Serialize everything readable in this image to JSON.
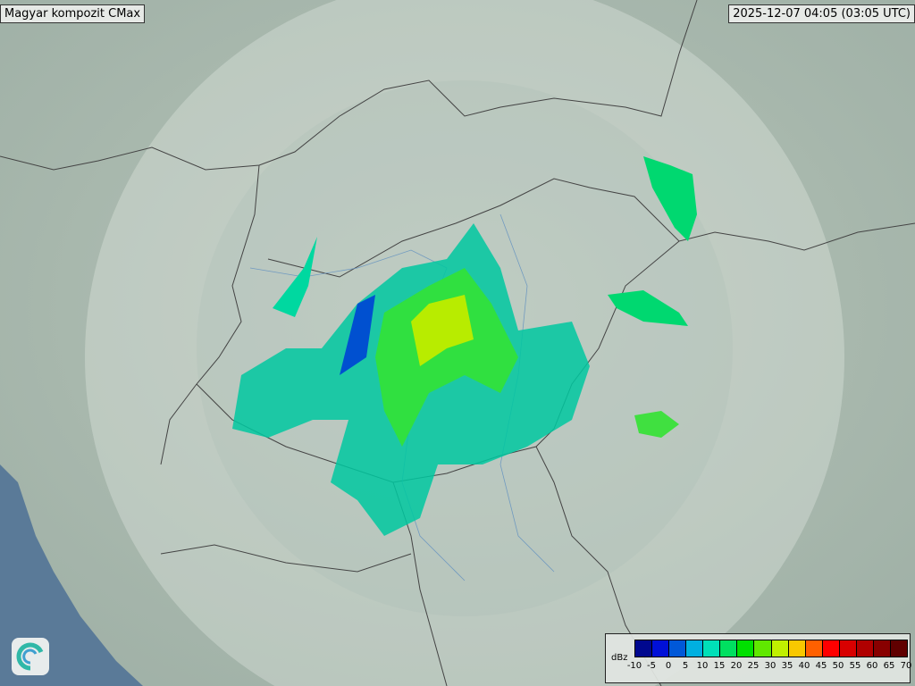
{
  "title": "Magyar kompozit  CMax",
  "timestamp": "2025-12-07 04:05 (03:05 UTC)",
  "legend": {
    "unit": "dBz",
    "ticks": [
      "-10",
      "-5",
      "0",
      "5",
      "10",
      "15",
      "20",
      "25",
      "30",
      "35",
      "40",
      "45",
      "50",
      "55",
      "60",
      "65",
      "70"
    ],
    "colors": [
      "#00088f",
      "#0010d8",
      "#0058d8",
      "#00b0e0",
      "#00e0b8",
      "#00e060",
      "#00e000",
      "#60e800",
      "#c0f000",
      "#f8c800",
      "#ff6000",
      "#ff0000",
      "#d80000",
      "#b00000",
      "#880000",
      "#600000"
    ]
  },
  "logo": {
    "icon": "swirl-logo-icon"
  },
  "map": {
    "sea_color": "#5a7a98",
    "land_color": "#a9b8ae",
    "coverage_color": "#d8e0da"
  }
}
